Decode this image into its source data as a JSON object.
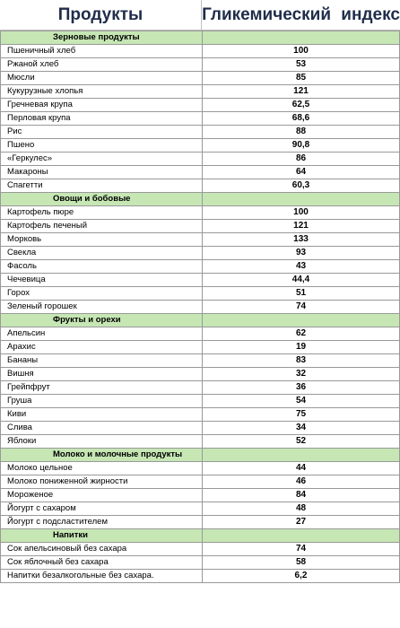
{
  "header": {
    "products": "Продукты",
    "gi": "Гликемический  индекс"
  },
  "categories": [
    {
      "name": "Зерновые продукты",
      "items": [
        {
          "name": "Пшеничный хлеб",
          "value": "100"
        },
        {
          "name": "Ржаной хлеб",
          "value": "53"
        },
        {
          "name": "Мюсли",
          "value": "85"
        },
        {
          "name": "Кукурузные хлопья",
          "value": "121"
        },
        {
          "name": "Гречневая крупа",
          "value": "62,5"
        },
        {
          "name": "Перловая крупа",
          "value": "68,6"
        },
        {
          "name": "Рис",
          "value": "88"
        },
        {
          "name": "Пшено",
          "value": "90,8"
        },
        {
          "name": "«Геркулес»",
          "value": "86"
        },
        {
          "name": "Макароны",
          "value": "64"
        },
        {
          "name": "Спагетти",
          "value": "60,3"
        }
      ]
    },
    {
      "name": "Овощи и бобовые",
      "items": [
        {
          "name": "Картофель пюре",
          "value": "100"
        },
        {
          "name": "Картофель печеный",
          "value": "121"
        },
        {
          "name": "Морковь",
          "value": "133"
        },
        {
          "name": "Свекла",
          "value": "93"
        },
        {
          "name": "Фасоль",
          "value": "43"
        },
        {
          "name": "Чечевица",
          "value": "44,4"
        },
        {
          "name": "Горох",
          "value": "51"
        },
        {
          "name": "Зеленый горошек",
          "value": "74"
        }
      ]
    },
    {
      "name": "Фрукты и орехи",
      "items": [
        {
          "name": "Апельсин",
          "value": "62"
        },
        {
          "name": "Арахис",
          "value": "19"
        },
        {
          "name": "Бананы",
          "value": "83"
        },
        {
          "name": "Вишня",
          "value": "32"
        },
        {
          "name": "Грейпфрут",
          "value": "36"
        },
        {
          "name": "Груша",
          "value": "54"
        },
        {
          "name": "Киви",
          "value": "75"
        },
        {
          "name": "Слива",
          "value": "34"
        },
        {
          "name": "Яблоки",
          "value": "52"
        }
      ]
    },
    {
      "name": "Молоко и молочные продукты",
      "items": [
        {
          "name": "Молоко цельное",
          "value": "44"
        },
        {
          "name": "Молоко пониженной жирности",
          "value": "46"
        },
        {
          "name": "Мороженое",
          "value": "84"
        },
        {
          "name": "Йогурт с сахаром",
          "value": "48"
        },
        {
          "name": "Йогурт с подсластителем",
          "value": "27"
        }
      ]
    },
    {
      "name": "Напитки",
      "items": [
        {
          "name": "Сок апельсиновый без сахара",
          "value": "74"
        },
        {
          "name": "Сок яблочный без сахара",
          "value": "58"
        },
        {
          "name": "Напитки безалкогольные без сахара.",
          "value": "6,2"
        }
      ]
    }
  ],
  "colors": {
    "category_background": "#c6e7b4",
    "header_text": "#1f2d4a"
  }
}
